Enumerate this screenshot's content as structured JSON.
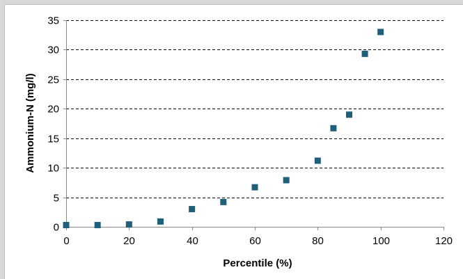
{
  "chart_data": {
    "type": "scatter",
    "title": "",
    "xlabel": "Percentile (%)",
    "ylabel": "Ammonium-N  (mg/l)",
    "xlim": [
      0,
      120
    ],
    "ylim": [
      0,
      35
    ],
    "xticks": [
      0,
      20,
      40,
      60,
      80,
      100,
      120
    ],
    "yticks": [
      0,
      5,
      10,
      15,
      20,
      25,
      30,
      35
    ],
    "grid": "horizontal dashed",
    "legend": "none",
    "marker": "square",
    "colors": {
      "marker": "#1f5f7a",
      "grid": "#000000",
      "axis": "#888888",
      "background": "#ffffff"
    },
    "series": [
      {
        "x": [
          0,
          10,
          20,
          30,
          40,
          50,
          60,
          70,
          80,
          85,
          90,
          95,
          100
        ],
        "y": [
          0.3,
          0.3,
          0.4,
          0.9,
          3.0,
          4.2,
          6.7,
          7.9,
          11.2,
          16.7,
          19.0,
          29.3,
          33.0
        ]
      }
    ]
  }
}
